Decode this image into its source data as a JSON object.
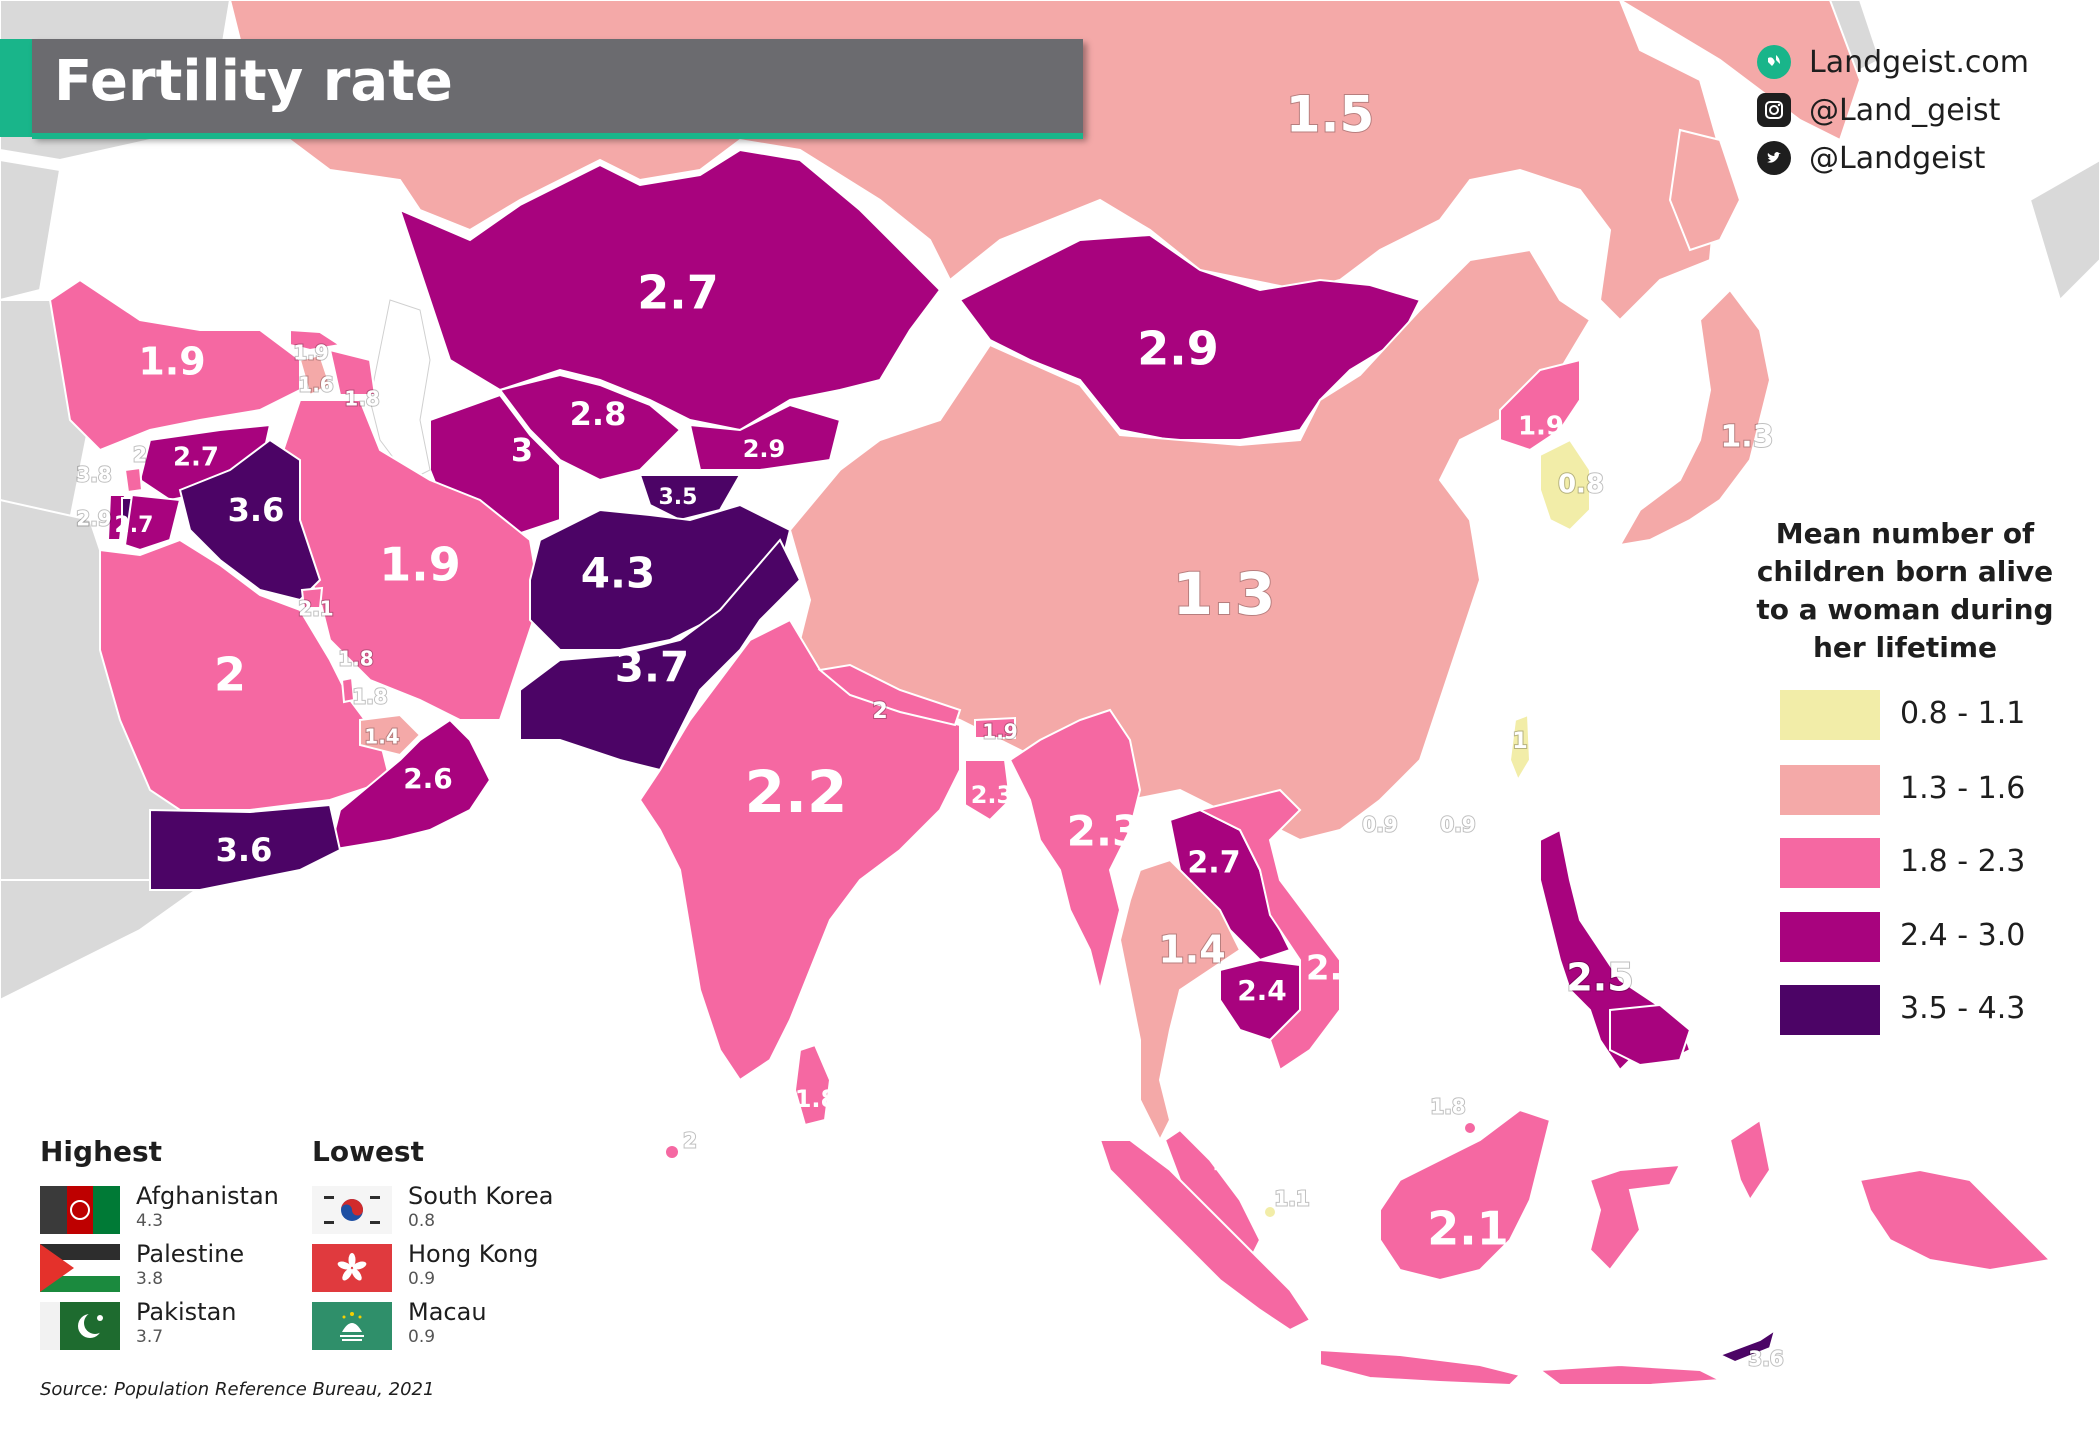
{
  "title": "Fertility rate",
  "brand": {
    "website": "Landgeist.com",
    "instagram": "@Land_geist",
    "twitter": "@Landgeist"
  },
  "legend": {
    "title_lines": [
      "Mean number of",
      "children born alive",
      "to a woman during",
      "her lifetime"
    ],
    "classes": [
      {
        "label": "0.8 - 1.1",
        "color": "#f2eda8"
      },
      {
        "label": "1.3 - 1.6",
        "color": "#f4a9a8"
      },
      {
        "label": "1.8 - 2.3",
        "color": "#f568a2"
      },
      {
        "label": "2.4 - 3.0",
        "color": "#a8037e"
      },
      {
        "label": "3.5 - 4.3",
        "color": "#4c0466"
      }
    ]
  },
  "colors": {
    "no_data": "#d9d9d9",
    "sea": "#ffffff",
    "title_bar": "#6b6b6f",
    "accent": "#19b58a"
  },
  "regions": [
    {
      "name": "Russia",
      "value": "1.5",
      "class": 1
    },
    {
      "name": "Turkey",
      "value": "1.9",
      "class": 2
    },
    {
      "name": "Georgia",
      "value": "1.9",
      "class": 2
    },
    {
      "name": "Armenia",
      "value": "1.6",
      "class": 1
    },
    {
      "name": "Azerbaijan",
      "value": "1.8",
      "class": 2
    },
    {
      "name": "Kazakhstan",
      "value": "2.7",
      "class": 3
    },
    {
      "name": "Mongolia",
      "value": "2.9",
      "class": 3
    },
    {
      "name": "Uzbekistan",
      "value": "2.8",
      "class": 3
    },
    {
      "name": "Turkmenistan",
      "value": "3",
      "class": 3
    },
    {
      "name": "Kyrgyzstan",
      "value": "2.9",
      "class": 3
    },
    {
      "name": "Tajikistan",
      "value": "3.5",
      "class": 4
    },
    {
      "name": "Syria",
      "value": "2.7",
      "class": 3
    },
    {
      "name": "Lebanon",
      "value": "2",
      "class": 2
    },
    {
      "name": "Palestine",
      "value": "3.8",
      "class": 4
    },
    {
      "name": "Israel",
      "value": "2.9",
      "class": 3
    },
    {
      "name": "Jordan",
      "value": "2.7",
      "class": 3
    },
    {
      "name": "Iraq",
      "value": "3.6",
      "class": 4
    },
    {
      "name": "Iran",
      "value": "1.9",
      "class": 2
    },
    {
      "name": "Afghanistan",
      "value": "4.3",
      "class": 4
    },
    {
      "name": "Pakistan",
      "value": "3.7",
      "class": 4
    },
    {
      "name": "Kuwait",
      "value": "2.1",
      "class": 2
    },
    {
      "name": "Bahrain",
      "value": "1.8",
      "class": 2
    },
    {
      "name": "Qatar",
      "value": "1.8",
      "class": 2
    },
    {
      "name": "UAE",
      "value": "1.4",
      "class": 1
    },
    {
      "name": "Saudi Arabia",
      "value": "2",
      "class": 2
    },
    {
      "name": "Oman",
      "value": "2.6",
      "class": 3
    },
    {
      "name": "Yemen",
      "value": "3.6",
      "class": 4
    },
    {
      "name": "China",
      "value": "1.3",
      "class": 1
    },
    {
      "name": "North Korea",
      "value": "1.9",
      "class": 2
    },
    {
      "name": "South Korea",
      "value": "0.8",
      "class": 0
    },
    {
      "name": "Japan",
      "value": "1.3",
      "class": 1
    },
    {
      "name": "Taiwan",
      "value": "1",
      "class": 0
    },
    {
      "name": "Hong Kong",
      "value": "0.9",
      "class": 0
    },
    {
      "name": "Macau",
      "value": "0.9",
      "class": 0
    },
    {
      "name": "India",
      "value": "2.2",
      "class": 2
    },
    {
      "name": "Nepal",
      "value": "2",
      "class": 2
    },
    {
      "name": "Bhutan",
      "value": "1.9",
      "class": 2
    },
    {
      "name": "Bangladesh",
      "value": "2.3",
      "class": 2
    },
    {
      "name": "Sri Lanka",
      "value": "1.8",
      "class": 2
    },
    {
      "name": "Maldives",
      "value": "2",
      "class": 2
    },
    {
      "name": "Myanmar",
      "value": "2.3",
      "class": 2
    },
    {
      "name": "Laos",
      "value": "2.7",
      "class": 3
    },
    {
      "name": "Thailand",
      "value": "1.4",
      "class": 1
    },
    {
      "name": "Cambodia",
      "value": "2.4",
      "class": 3
    },
    {
      "name": "Vietnam",
      "value": "2.1",
      "class": 2
    },
    {
      "name": "Philippines",
      "value": "2.5",
      "class": 3
    },
    {
      "name": "Malaysia",
      "value": "1.8",
      "class": 2
    },
    {
      "name": "Brunei",
      "value": "1.8",
      "class": 2
    },
    {
      "name": "Singapore",
      "value": "1.1",
      "class": 0
    },
    {
      "name": "Indonesia",
      "value": "2.1",
      "class": 2
    },
    {
      "name": "Timor-Leste",
      "value": "3.6",
      "class": 4
    }
  ],
  "highest": {
    "heading": "Highest",
    "items": [
      {
        "name": "Afghanistan",
        "value": "4.3"
      },
      {
        "name": "Palestine",
        "value": "3.8"
      },
      {
        "name": "Pakistan",
        "value": "3.7"
      }
    ]
  },
  "lowest": {
    "heading": "Lowest",
    "items": [
      {
        "name": "South Korea",
        "value": "0.8"
      },
      {
        "name": "Hong Kong",
        "value": "0.9"
      },
      {
        "name": "Macau",
        "value": "0.9"
      }
    ]
  },
  "source": "Source: Population Reference Bureau, 2021"
}
